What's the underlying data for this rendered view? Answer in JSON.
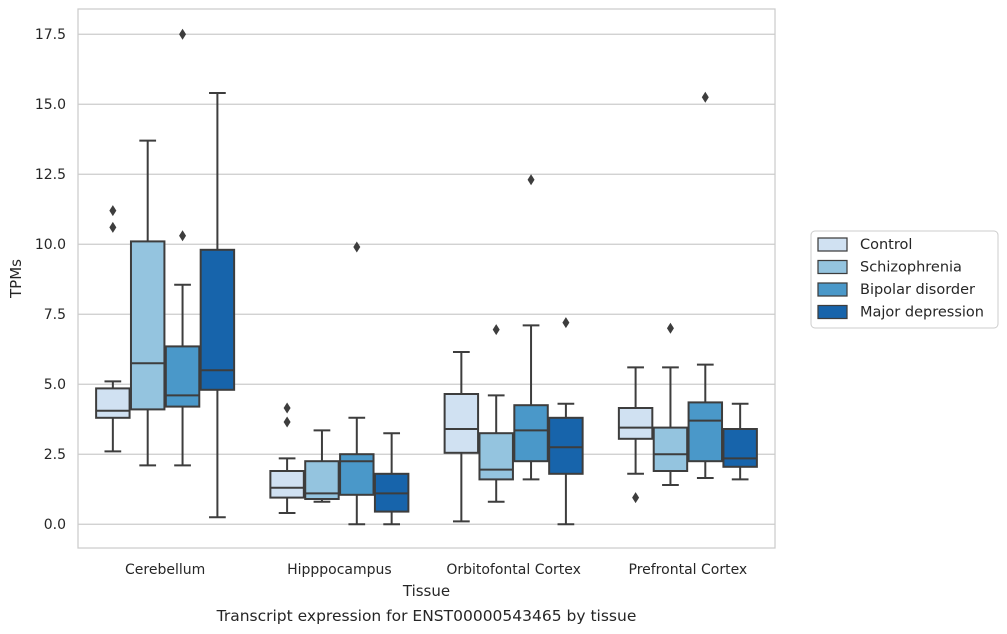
{
  "chart_data": {
    "type": "box",
    "xlabel": "Tissue",
    "ylabel": "TPMs",
    "caption": "Transcript expression for ENST00000543465 by tissue",
    "ylim": [
      -0.85,
      18.4
    ],
    "yticks": [
      0.0,
      2.5,
      5.0,
      7.5,
      10.0,
      12.5,
      15.0,
      17.5
    ],
    "ytick_labels": [
      "0.0",
      "2.5",
      "5.0",
      "7.5",
      "10.0",
      "12.5",
      "15.0",
      "17.5"
    ],
    "grid": "horizontal",
    "legend_position": "right",
    "categories": [
      "Cerebellum",
      "Hipppocampus",
      "Orbitofontal Cortex",
      "Prefrontal Cortex"
    ],
    "series": [
      {
        "name": "Control",
        "color": "#d0e1f2",
        "boxes": [
          {
            "whislo": 2.6,
            "q1": 3.8,
            "med": 4.05,
            "q3": 4.85,
            "whishi": 5.1,
            "fliers": [
              11.2,
              10.6
            ]
          },
          {
            "whislo": 0.4,
            "q1": 0.95,
            "med": 1.3,
            "q3": 1.9,
            "whishi": 2.35,
            "fliers": [
              4.15,
              3.65
            ]
          },
          {
            "whislo": 0.1,
            "q1": 2.55,
            "med": 3.4,
            "q3": 4.65,
            "whishi": 6.15,
            "fliers": []
          },
          {
            "whislo": 1.8,
            "q1": 3.05,
            "med": 3.45,
            "q3": 4.15,
            "whishi": 5.6,
            "fliers": [
              0.95
            ]
          }
        ]
      },
      {
        "name": "Schizophrenia",
        "color": "#94c4df",
        "boxes": [
          {
            "whislo": 2.1,
            "q1": 4.1,
            "med": 5.75,
            "q3": 10.1,
            "whishi": 13.7,
            "fliers": []
          },
          {
            "whislo": 0.8,
            "q1": 0.9,
            "med": 1.1,
            "q3": 2.25,
            "whishi": 3.35,
            "fliers": []
          },
          {
            "whislo": 0.8,
            "q1": 1.6,
            "med": 1.95,
            "q3": 3.25,
            "whishi": 4.6,
            "fliers": [
              6.95
            ]
          },
          {
            "whislo": 1.4,
            "q1": 1.9,
            "med": 2.5,
            "q3": 3.45,
            "whishi": 5.6,
            "fliers": [
              7.0
            ]
          }
        ]
      },
      {
        "name": "Bipolar disorder",
        "color": "#4a98c9",
        "boxes": [
          {
            "whislo": 2.1,
            "q1": 4.2,
            "med": 4.6,
            "q3": 6.35,
            "whishi": 8.55,
            "fliers": [
              17.5,
              10.3
            ]
          },
          {
            "whislo": 0.0,
            "q1": 1.05,
            "med": 2.25,
            "q3": 2.5,
            "whishi": 3.8,
            "fliers": [
              9.9
            ]
          },
          {
            "whislo": 1.6,
            "q1": 2.25,
            "med": 3.35,
            "q3": 4.25,
            "whishi": 7.1,
            "fliers": [
              12.3
            ]
          },
          {
            "whislo": 1.65,
            "q1": 2.25,
            "med": 3.7,
            "q3": 4.35,
            "whishi": 5.7,
            "fliers": [
              15.25
            ]
          }
        ]
      },
      {
        "name": "Major depression",
        "color": "#1764ab",
        "boxes": [
          {
            "whislo": 0.25,
            "q1": 4.8,
            "med": 5.5,
            "q3": 9.8,
            "whishi": 15.4,
            "fliers": []
          },
          {
            "whislo": 0.0,
            "q1": 0.45,
            "med": 1.1,
            "q3": 1.8,
            "whishi": 3.25,
            "fliers": []
          },
          {
            "whislo": 0.0,
            "q1": 1.8,
            "med": 2.75,
            "q3": 3.8,
            "whishi": 4.3,
            "fliers": [
              7.2
            ]
          },
          {
            "whislo": 1.6,
            "q1": 2.05,
            "med": 2.35,
            "q3": 3.4,
            "whishi": 4.3,
            "fliers": []
          }
        ]
      }
    ]
  }
}
